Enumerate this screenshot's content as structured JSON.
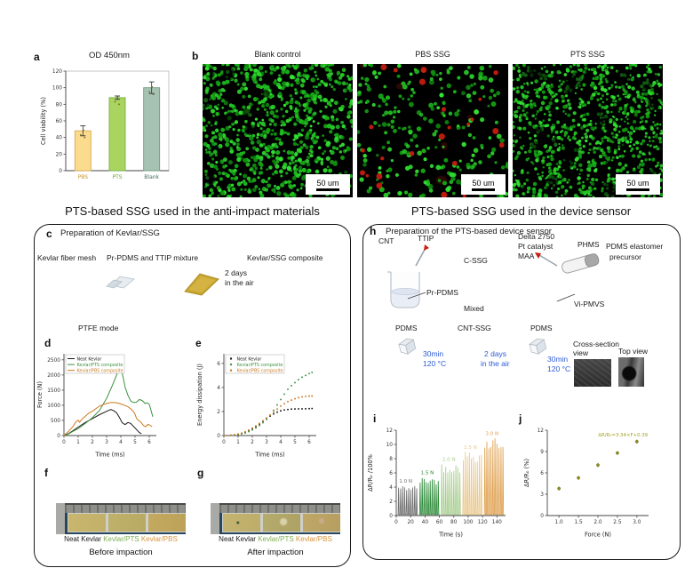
{
  "sections": {
    "left": "PTS-based SSG used in the anti-impact materials",
    "right": "PTS-based SSG used in the device sensor"
  },
  "panel_a": {
    "letter": "a",
    "title": "OD 450nm"
  },
  "panel_b": {
    "letter": "b",
    "images": [
      {
        "title": "Blank control",
        "scale": "50 um"
      },
      {
        "title": "PBS SSG",
        "scale": "50 um"
      },
      {
        "title": "PTS SSG",
        "scale": "50 um"
      }
    ]
  },
  "panel_c": {
    "letter": "c",
    "title": "Preparation of Kevlar/SSG",
    "label_mesh": "Kevlar fiber mesh",
    "label_mixture": "Pr-PDMS and TTIP mixture",
    "label_composite": "Kevlar/SSG composite",
    "label_days": "2 days",
    "label_air": "in the air"
  },
  "panel_d": {
    "letter": "d",
    "mode_label": "PTFE mode"
  },
  "panel_e": {
    "letter": "e"
  },
  "panel_f": {
    "letter": "f",
    "labels": [
      "Neat Kevlar",
      "Kevlar/PTS",
      "Kevlar/PBS"
    ],
    "caption": "Before impaction"
  },
  "panel_g": {
    "letter": "g",
    "labels": [
      "Neat Kevlar",
      "Kevlar/PTS",
      "Kevlar/PBS"
    ],
    "caption": "After impaction"
  },
  "panel_h": {
    "letter": "h",
    "title": "Preparation of the PTS-based device sensor",
    "cnt": "CNT",
    "ttip": "TTIP",
    "cssg": "C-SSG",
    "delta": "Delta 2750",
    "pt": "Pt catalyst",
    "maa": "MAA",
    "phms": "PHMS",
    "elast1": "PDMS elastomer",
    "elast2": "precursor",
    "prpdms": "Pr-PDMS",
    "mixed": "Mixed",
    "vipmvs": "Vi-PMVS",
    "pdms1": "PDMS",
    "cntssg": "CNT-SSG",
    "pdms2": "PDMS",
    "bake1": [
      "30min",
      "120 °C"
    ],
    "air": [
      "2 days",
      "in the air"
    ],
    "bake2": [
      "30min",
      "120 °C"
    ],
    "cross1": "Cross-section",
    "cross2": "view",
    "topview": "Top view"
  },
  "panel_i": {
    "letter": "i"
  },
  "panel_j": {
    "letter": "j"
  },
  "micro": [
    {
      "green": 820,
      "red": 0,
      "dim": 0,
      "patches": 10,
      "rmin": 1.3,
      "rmax": 2.7,
      "seed": 7
    },
    {
      "green": 255,
      "red": 24,
      "dim": 7,
      "patches": 0,
      "rmin": 1.5,
      "rmax": 3.0,
      "seed": 13
    },
    {
      "green": 980,
      "red": 0,
      "dim": 0,
      "patches": 22,
      "rmin": 1.1,
      "rmax": 2.3,
      "seed": 29
    }
  ],
  "chart_data": [
    {
      "id": "a",
      "type": "bar",
      "title": "OD 450nm",
      "ylabel": "Cell viability (%)",
      "categories": [
        "PBS",
        "PTS",
        "Blank"
      ],
      "values": [
        48,
        88,
        100
      ],
      "errors": [
        6,
        2,
        7
      ],
      "ylim": [
        0,
        120
      ],
      "yticks": [
        0,
        20,
        40,
        60,
        80,
        100,
        120
      ],
      "bar_fill": [
        "#fbdc8e",
        "#a9d45f",
        "#a6c2b2"
      ],
      "bar_stroke": [
        "#d9a94e",
        "#74b340",
        "#739a87"
      ],
      "tick_colors": [
        "#c8922a",
        "#6aa336",
        "#3d6b5c"
      ]
    },
    {
      "id": "d",
      "type": "line",
      "xlabel": "Time (ms)",
      "ylabel": "Force (N)",
      "xlim": [
        0,
        6.5
      ],
      "ylim": [
        0,
        2700
      ],
      "xticks": [
        0,
        1,
        2,
        3,
        4,
        5,
        6
      ],
      "yticks": [
        0,
        500,
        1000,
        1500,
        2000,
        2500
      ],
      "legend_pos": "top-left",
      "series": [
        {
          "name": "Neat Kevlar",
          "color": "#1a1a1a",
          "points": [
            [
              0,
              0
            ],
            [
              0.3,
              60
            ],
            [
              0.6,
              150
            ],
            [
              1,
              280
            ],
            [
              1.5,
              430
            ],
            [
              2,
              560
            ],
            [
              2.5,
              690
            ],
            [
              3,
              800
            ],
            [
              3.3,
              860
            ],
            [
              3.5,
              820
            ],
            [
              3.7,
              750
            ],
            [
              3.9,
              600
            ],
            [
              4.1,
              420
            ],
            [
              4.3,
              360
            ],
            [
              4.5,
              430
            ],
            [
              4.7,
              400
            ],
            [
              4.9,
              300
            ],
            [
              5.1,
              200
            ],
            [
              5.3,
              100
            ],
            [
              5.45,
              60
            ]
          ]
        },
        {
          "name": "Kevlar/PTS composite",
          "color": "#3d9140",
          "points": [
            [
              0,
              0
            ],
            [
              0.3,
              50
            ],
            [
              0.6,
              130
            ],
            [
              1,
              230
            ],
            [
              1.5,
              400
            ],
            [
              2,
              590
            ],
            [
              2.5,
              830
            ],
            [
              3,
              1230
            ],
            [
              3.4,
              1650
            ],
            [
              3.7,
              2000
            ],
            [
              3.9,
              2260
            ],
            [
              4.0,
              2230
            ],
            [
              4.15,
              1950
            ],
            [
              4.3,
              1600
            ],
            [
              4.5,
              1330
            ],
            [
              4.7,
              1140
            ],
            [
              4.9,
              1090
            ],
            [
              5.1,
              1100
            ],
            [
              5.3,
              1190
            ],
            [
              5.5,
              1160
            ],
            [
              5.7,
              1060
            ],
            [
              5.85,
              1080
            ],
            [
              6.0,
              1030
            ],
            [
              6.1,
              870
            ],
            [
              6.25,
              620
            ]
          ]
        },
        {
          "name": "Kevlar/PBS composite",
          "color": "#cc7a22",
          "points": [
            [
              0,
              0
            ],
            [
              0.3,
              130
            ],
            [
              0.6,
              280
            ],
            [
              0.85,
              460
            ],
            [
              1.0,
              510
            ],
            [
              1.1,
              440
            ],
            [
              1.25,
              530
            ],
            [
              1.5,
              640
            ],
            [
              1.75,
              740
            ],
            [
              2,
              800
            ],
            [
              2.25,
              890
            ],
            [
              2.5,
              970
            ],
            [
              2.75,
              1020
            ],
            [
              3,
              1060
            ],
            [
              3.3,
              1090
            ],
            [
              3.6,
              1090
            ],
            [
              3.9,
              1060
            ],
            [
              4.2,
              1010
            ],
            [
              4.5,
              950
            ],
            [
              4.7,
              880
            ],
            [
              4.9,
              790
            ],
            [
              5.0,
              700
            ],
            [
              5.1,
              570
            ],
            [
              5.25,
              500
            ],
            [
              5.4,
              450
            ],
            [
              5.6,
              330
            ],
            [
              5.75,
              290
            ],
            [
              5.9,
              370
            ],
            [
              6.05,
              340
            ],
            [
              6.2,
              300
            ]
          ]
        }
      ]
    },
    {
      "id": "e",
      "type": "scatter-line",
      "xlabel": "Time (ms)",
      "ylabel": "Energy dissipation (J)",
      "xlim": [
        0,
        6.5
      ],
      "ylim": [
        0,
        6.8
      ],
      "xticks": [
        0,
        1,
        2,
        3,
        4,
        5,
        6
      ],
      "yticks": [
        0,
        2,
        4,
        6
      ],
      "series": [
        {
          "name": "Neat Kevlar",
          "color": "#1a1a1a",
          "points": [
            [
              0,
              0
            ],
            [
              0.5,
              0.02
            ],
            [
              0.75,
              0.05
            ],
            [
              1,
              0.1
            ],
            [
              1.25,
              0.17
            ],
            [
              1.5,
              0.27
            ],
            [
              1.75,
              0.4
            ],
            [
              2,
              0.55
            ],
            [
              2.25,
              0.74
            ],
            [
              2.5,
              0.95
            ],
            [
              2.75,
              1.18
            ],
            [
              3,
              1.4
            ],
            [
              3.25,
              1.62
            ],
            [
              3.5,
              1.8
            ],
            [
              3.75,
              1.95
            ],
            [
              4,
              2.06
            ],
            [
              4.25,
              2.13
            ],
            [
              4.5,
              2.17
            ],
            [
              4.75,
              2.2
            ],
            [
              5,
              2.21
            ],
            [
              5.25,
              2.22
            ],
            [
              5.5,
              2.22
            ],
            [
              5.75,
              2.23
            ],
            [
              6,
              2.24
            ],
            [
              6.2,
              2.25
            ]
          ]
        },
        {
          "name": "Kevlar/PTS composite",
          "color": "#3d9140",
          "points": [
            [
              0,
              0
            ],
            [
              0.5,
              0.02
            ],
            [
              0.75,
              0.04
            ],
            [
              1,
              0.08
            ],
            [
              1.25,
              0.14
            ],
            [
              1.5,
              0.22
            ],
            [
              1.75,
              0.33
            ],
            [
              2,
              0.47
            ],
            [
              2.25,
              0.64
            ],
            [
              2.5,
              0.84
            ],
            [
              2.75,
              1.07
            ],
            [
              3,
              1.35
            ],
            [
              3.25,
              1.7
            ],
            [
              3.5,
              2.1
            ],
            [
              3.75,
              2.55
            ],
            [
              4,
              3.0
            ],
            [
              4.25,
              3.45
            ],
            [
              4.5,
              3.85
            ],
            [
              4.75,
              4.15
            ],
            [
              5,
              4.4
            ],
            [
              5.25,
              4.65
            ],
            [
              5.5,
              4.85
            ],
            [
              5.75,
              5.0
            ],
            [
              6,
              5.15
            ],
            [
              6.2,
              5.25
            ]
          ]
        },
        {
          "name": "Kevlar/PBS composite",
          "color": "#cc7a22",
          "points": [
            [
              0,
              0
            ],
            [
              0.5,
              0.03
            ],
            [
              0.75,
              0.07
            ],
            [
              1,
              0.13
            ],
            [
              1.25,
              0.21
            ],
            [
              1.5,
              0.32
            ],
            [
              1.75,
              0.46
            ],
            [
              2,
              0.62
            ],
            [
              2.25,
              0.81
            ],
            [
              2.5,
              1.01
            ],
            [
              2.75,
              1.23
            ],
            [
              3,
              1.46
            ],
            [
              3.25,
              1.7
            ],
            [
              3.5,
              1.95
            ],
            [
              3.75,
              2.2
            ],
            [
              4,
              2.45
            ],
            [
              4.25,
              2.65
            ],
            [
              4.5,
              2.82
            ],
            [
              4.75,
              2.95
            ],
            [
              5,
              3.06
            ],
            [
              5.25,
              3.15
            ],
            [
              5.5,
              3.22
            ],
            [
              5.75,
              3.26
            ],
            [
              6,
              3.28
            ],
            [
              6.2,
              3.28
            ]
          ]
        }
      ]
    },
    {
      "id": "i",
      "type": "pulse",
      "xlabel": "Time (s)",
      "ylabel": "ΔR/R₀ /100%",
      "xlim": [
        0,
        152
      ],
      "ylim": [
        0,
        12
      ],
      "xticks": [
        0,
        20,
        40,
        60,
        80,
        100,
        120,
        140
      ],
      "yticks": [
        0,
        2,
        4,
        6,
        8,
        10,
        12
      ],
      "groups": [
        {
          "label": "1.0 N",
          "color": "#707070",
          "t0": 2,
          "t1": 30,
          "n": 10,
          "amp": 4.0,
          "lx": 4,
          "ly": 4.6
        },
        {
          "label": "1.5 N",
          "color": "#2e8b3a",
          "t0": 32,
          "t1": 60,
          "n": 10,
          "amp": 5.1,
          "lx": 34,
          "ly": 5.8
        },
        {
          "label": "2.0 N",
          "color": "#a7cd8e",
          "t0": 62,
          "t1": 90,
          "n": 10,
          "amp": 7.0,
          "lx": 64,
          "ly": 7.7
        },
        {
          "label": "2.5 N",
          "color": "#eac88d",
          "t0": 92,
          "t1": 120,
          "n": 10,
          "amp": 8.7,
          "lx": 94,
          "ly": 9.4
        },
        {
          "label": "3.0 N",
          "color": "#de9f4e",
          "t0": 122,
          "t1": 150,
          "n": 10,
          "amp": 10.5,
          "lx": 124,
          "ly": 11.3
        }
      ]
    },
    {
      "id": "j",
      "type": "scatter",
      "xlabel": "Force (N)",
      "ylabel": "ΔR/R₀ (%)",
      "xlim": [
        0.7,
        3.3
      ],
      "ylim": [
        0,
        12
      ],
      "xdec": 1,
      "xticks": [
        1.0,
        1.5,
        2.0,
        2.5,
        3.0
      ],
      "yticks": [
        0,
        3,
        6,
        9,
        12
      ],
      "x": [
        1.0,
        1.5,
        2.0,
        2.5,
        3.0
      ],
      "y": [
        3.8,
        5.3,
        7.1,
        8.8,
        10.4
      ],
      "yerr": 0.3,
      "color": "#8f8f1f",
      "annotation": "ΔR/R₀=3.34×F+0.39",
      "annotation_color": "#a3a31c"
    }
  ]
}
